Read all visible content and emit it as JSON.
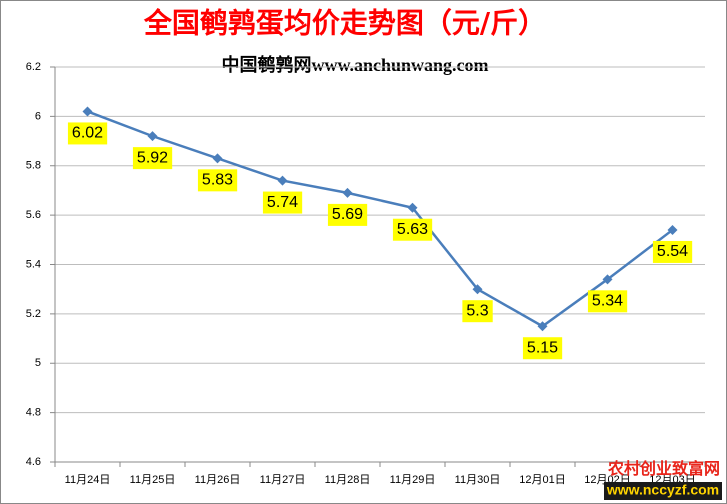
{
  "chart_data": {
    "type": "line",
    "title": "全国鹌鹑蛋均价走势图（元/斤）",
    "subtitle": "中国鹌鹑网www.anchunwang.com",
    "categories": [
      "11月24日",
      "11月25日",
      "11月26日",
      "11月27日",
      "11月28日",
      "11月29日",
      "11月30日",
      "12月01日",
      "12月02日",
      "12月03日"
    ],
    "values": [
      6.02,
      5.92,
      5.83,
      5.74,
      5.69,
      5.63,
      5.3,
      5.15,
      5.34,
      5.54
    ],
    "color": "#4a7ebb",
    "ylim": [
      4.6,
      6.2
    ],
    "yticks": [
      4.6,
      4.8,
      5,
      5.2,
      5.4,
      5.6,
      5.8,
      6,
      6.2
    ],
    "grid": true,
    "watermark": [
      "农村创业致富网",
      "www.nccyzf.com"
    ]
  }
}
